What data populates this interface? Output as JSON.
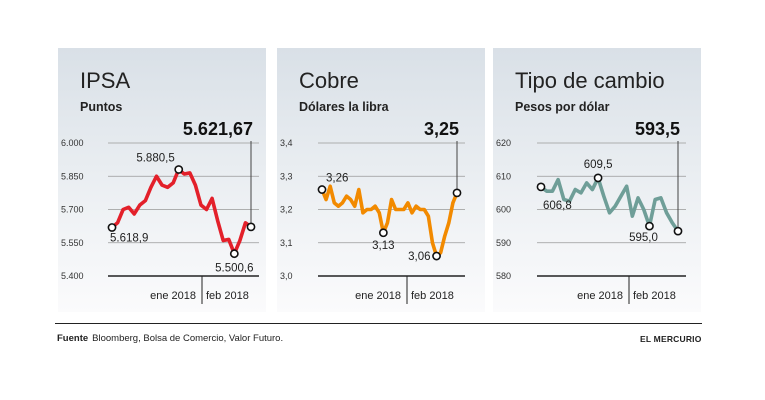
{
  "chart_data": [
    {
      "type": "line",
      "title": "IPSA",
      "subtitle": "Puntos",
      "current_value": "5.621,67",
      "yticks": [
        "6.000",
        "5.850",
        "5.700",
        "5.550",
        "5.400"
      ],
      "ytick_values": [
        6000,
        5850,
        5700,
        5550,
        5400
      ],
      "ylim": [
        5400,
        6000
      ],
      "x_labels": [
        "ene 2018",
        "feb 2018"
      ],
      "color": "#e3202a",
      "grid": true,
      "values": [
        5618.9,
        5640,
        5700,
        5710,
        5680,
        5720,
        5740,
        5800,
        5850,
        5810,
        5800,
        5820,
        5880.5,
        5860,
        5865,
        5810,
        5720,
        5700,
        5750,
        5650,
        5560,
        5565,
        5500.6,
        5560,
        5640,
        5621.67
      ],
      "annotations": [
        {
          "index": 0,
          "text": "5.618,9"
        },
        {
          "index": 12,
          "text": "5.880,5"
        },
        {
          "index": 22,
          "text": "5.500,6"
        }
      ]
    },
    {
      "type": "line",
      "title": "Cobre",
      "subtitle": "Dólares la libra",
      "current_value": "3,25",
      "yticks": [
        "3,4",
        "3,3",
        "3,2",
        "3,1",
        "3,0"
      ],
      "ytick_values": [
        3.4,
        3.3,
        3.2,
        3.1,
        3.0
      ],
      "ylim": [
        3.0,
        3.4
      ],
      "x_labels": [
        "ene 2018",
        "feb 2018"
      ],
      "color": "#f28a00",
      "grid": true,
      "values": [
        3.26,
        3.23,
        3.27,
        3.22,
        3.21,
        3.22,
        3.24,
        3.23,
        3.21,
        3.26,
        3.19,
        3.2,
        3.2,
        3.21,
        3.19,
        3.13,
        3.16,
        3.23,
        3.2,
        3.2,
        3.2,
        3.22,
        3.19,
        3.21,
        3.2,
        3.2,
        3.18,
        3.1,
        3.06,
        3.07,
        3.12,
        3.16,
        3.22,
        3.25
      ],
      "annotations": [
        {
          "index": 0,
          "text": "3,26"
        },
        {
          "index": 15,
          "text": "3,13"
        },
        {
          "index": 28,
          "text": "3,06"
        }
      ]
    },
    {
      "type": "line",
      "title": "Tipo de cambio",
      "subtitle": "Pesos por dólar",
      "current_value": "593,5",
      "yticks": [
        "620",
        "610",
        "600",
        "590",
        "580"
      ],
      "ytick_values": [
        620,
        610,
        600,
        590,
        580
      ],
      "ylim": [
        580,
        620
      ],
      "x_labels": [
        "ene 2018",
        "feb 2018"
      ],
      "color": "#6f9e98",
      "grid": true,
      "values": [
        606.8,
        605.5,
        605.5,
        609,
        603,
        602.5,
        606,
        605,
        608,
        606,
        609.5,
        604,
        599,
        601,
        604,
        607,
        598,
        603.5,
        600,
        595,
        603,
        603.5,
        599,
        596,
        593.5
      ],
      "annotations": [
        {
          "index": 0,
          "text": "606,8"
        },
        {
          "index": 10,
          "text": "609,5"
        },
        {
          "index": 19,
          "text": "595,0"
        }
      ]
    }
  ],
  "footer": {
    "source_label": "Fuente",
    "source_text": "Bloomberg, Bolsa de Comercio, Valor Futuro.",
    "brand": "EL MERCURIO"
  }
}
